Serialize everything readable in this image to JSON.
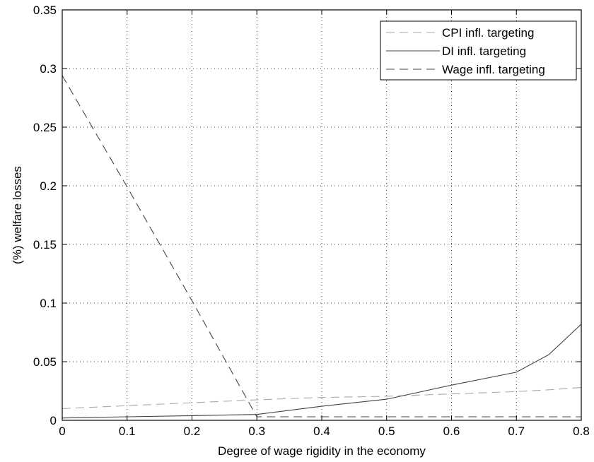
{
  "chart_data": {
    "type": "line",
    "title": "",
    "xlabel": "Degree of wage rigidity in the economy",
    "ylabel": "(%) welfare losses",
    "xlim": [
      0,
      0.8
    ],
    "ylim": [
      0,
      0.35
    ],
    "x_ticks": [
      "0",
      "0.1",
      "0.2",
      "0.3",
      "0.4",
      "0.5",
      "0.6",
      "0.7",
      "0.8"
    ],
    "y_ticks": [
      "0",
      "0.05",
      "0.1",
      "0.15",
      "0.2",
      "0.25",
      "0.3",
      "0.35"
    ],
    "grid": true,
    "legend_position": "top-right",
    "series": [
      {
        "name": "CPI infl. targeting",
        "style": "dashed",
        "color": "#aaaaaa",
        "x": [
          0,
          0.1,
          0.2,
          0.3,
          0.4,
          0.5,
          0.6,
          0.7,
          0.75,
          0.8
        ],
        "y": [
          0.01,
          0.0125,
          0.015,
          0.0175,
          0.0195,
          0.0205,
          0.0225,
          0.0245,
          0.026,
          0.028
        ]
      },
      {
        "name": "DI infl. targeting",
        "style": "solid",
        "color": "#444444",
        "x": [
          0,
          0.1,
          0.2,
          0.3,
          0.4,
          0.5,
          0.6,
          0.7,
          0.75,
          0.8
        ],
        "y": [
          0.002,
          0.003,
          0.004,
          0.005,
          0.012,
          0.018,
          0.03,
          0.041,
          0.056,
          0.082
        ]
      },
      {
        "name": "Wage infl. targeting",
        "style": "dashed",
        "color": "#444444",
        "x": [
          0,
          0.1,
          0.2,
          0.3,
          0.4,
          0.5,
          0.6,
          0.7,
          0.75,
          0.8
        ],
        "y": [
          0.294,
          0.199,
          0.102,
          0.003,
          0.003,
          0.003,
          0.003,
          0.003,
          0.003,
          0.003
        ]
      }
    ]
  }
}
